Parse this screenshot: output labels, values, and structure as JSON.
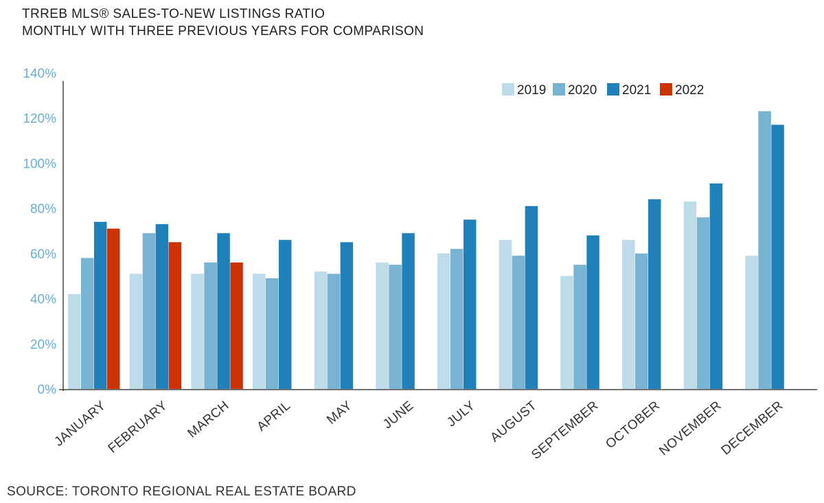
{
  "header": {
    "title_line1": "TRREB MLS® SALES-TO-NEW LISTINGS RATIO",
    "title_line2": "MONTHLY WITH THREE PREVIOUS YEARS FOR COMPARISON"
  },
  "footer": {
    "source": "SOURCE: TORONTO REGIONAL REAL ESTATE BOARD"
  },
  "chart_data": {
    "type": "bar",
    "title": "TRREB MLS® SALES-TO-NEW LISTINGS RATIO",
    "subtitle": "MONTHLY WITH THREE PREVIOUS YEARS FOR COMPARISON",
    "xlabel": "",
    "ylabel": "",
    "ylim": [
      0,
      140
    ],
    "yticks": [
      "0%",
      "20%",
      "40%",
      "60%",
      "80%",
      "100%",
      "120%",
      "140%"
    ],
    "ytick_values": [
      0,
      20,
      40,
      60,
      80,
      100,
      120,
      140
    ],
    "grid": false,
    "legend_position": "top-right",
    "categories": [
      "JANUARY",
      "FEBRUARY",
      "MARCH",
      "APRIL",
      "MAY",
      "JUNE",
      "JULY",
      "AUGUST",
      "SEPTEMBER",
      "OCTOBER",
      "NOVEMBER",
      "DECEMBER"
    ],
    "series": [
      {
        "name": "2019",
        "color": "#bedbe9",
        "values": [
          42,
          51,
          51,
          51,
          52,
          56,
          60,
          66,
          50,
          66,
          83,
          59
        ]
      },
      {
        "name": "2020",
        "color": "#79b3d4",
        "values": [
          58,
          69,
          56,
          49,
          51,
          55,
          62,
          59,
          55,
          60,
          76,
          123
        ]
      },
      {
        "name": "2021",
        "color": "#2080b9",
        "values": [
          74,
          73,
          69,
          66,
          65,
          69,
          75,
          81,
          68,
          84,
          91,
          117
        ]
      },
      {
        "name": "2022",
        "color": "#cc3300",
        "values": [
          71,
          65,
          56,
          null,
          null,
          null,
          null,
          null,
          null,
          null,
          null,
          null
        ]
      }
    ]
  }
}
